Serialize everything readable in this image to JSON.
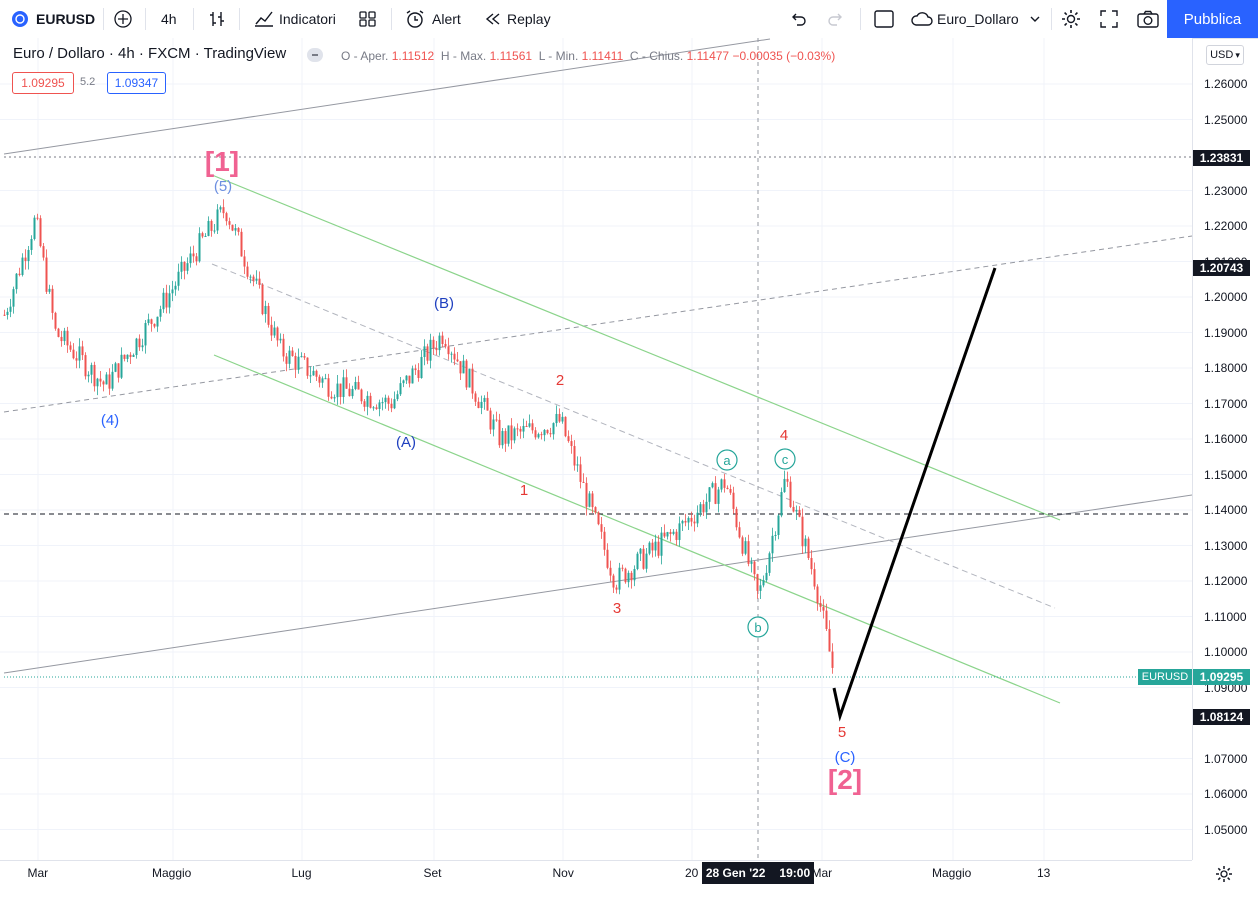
{
  "toolbar": {
    "symbol": "EURUSD",
    "interval": "4h",
    "indicators_label": "Indicatori",
    "alert_label": "Alert",
    "replay_label": "Replay",
    "layout_name": "Euro_Dollaro",
    "publish_label": "Pubblica"
  },
  "legend": {
    "title": "Euro / Dollaro · 4h · FXCM · TradingView",
    "open_label": "O - Aper.",
    "open": "1.11512",
    "high_label": "H - Max.",
    "high": "1.11561",
    "low_label": "L - Min.",
    "low": "1.11411",
    "close_label": "C - Chius.",
    "close": "1.11477",
    "change": "−0.00035 (−0.03%)",
    "sell_price": "1.09295",
    "spread": "5.2",
    "buy_price": "1.09347"
  },
  "price_axis": {
    "currency": "USD",
    "ticks": [
      "1.26000",
      "1.25000",
      "1.23000",
      "1.22000",
      "1.21000",
      "1.20000",
      "1.19000",
      "1.18000",
      "1.17000",
      "1.16000",
      "1.15000",
      "1.14000",
      "1.13000",
      "1.12000",
      "1.11000",
      "1.10000",
      "1.09000",
      "1.07000",
      "1.06000",
      "1.05000"
    ],
    "labels": {
      "level_high": "1.23831",
      "level_target": "1.20743",
      "symbol_tag": "EURUSD",
      "last_price": "1.09295",
      "level_low": "1.08124"
    }
  },
  "time_axis": {
    "ticks": [
      "Mar",
      "Maggio",
      "Lug",
      "Set",
      "Nov",
      "20",
      "Mar",
      "Maggio",
      "13"
    ],
    "crosshair_date": "28 Gen '22",
    "crosshair_time": "19:00"
  },
  "wave_labels": {
    "w1": "[1]",
    "w5": "(5)",
    "w4": "(4)",
    "wB": "(B)",
    "wA": "(A)",
    "n1": "1",
    "n2": "2",
    "n3": "3",
    "n4": "4",
    "n5": "5",
    "a": "a",
    "b": "b",
    "c": "c",
    "wC": "(C)",
    "w2": "[2]"
  },
  "colors": {
    "up": "#26a69a",
    "down": "#ef5350",
    "accent": "#2962ff",
    "wave_pink": "#f06292",
    "wave_blue": "#1e3fbf",
    "wave_red": "#e53935"
  },
  "chart_data": {
    "type": "candlestick",
    "symbol": "EURUSD",
    "interval": "4h",
    "y_range": [
      1.04,
      1.27
    ],
    "path": [
      [
        "Mar",
        1.195
      ],
      [
        "",
        1.222
      ],
      [
        "",
        1.19
      ],
      [
        "",
        1.175
      ],
      [
        "Maggio",
        1.197
      ],
      [
        "",
        1.215
      ],
      [
        "",
        1.225
      ],
      [
        "Lug",
        1.185
      ],
      [
        "",
        1.175
      ],
      [
        "",
        1.17
      ],
      [
        "Set",
        1.19
      ],
      [
        "",
        1.16
      ],
      [
        "Nov",
        1.165
      ],
      [
        "",
        1.12
      ],
      [
        "",
        1.135
      ],
      [
        "",
        1.148
      ],
      [
        "28 Gen '22",
        1.115
      ],
      [
        "",
        1.149
      ],
      [
        "Mar",
        1.12
      ],
      [
        "",
        1.09295
      ]
    ]
  }
}
